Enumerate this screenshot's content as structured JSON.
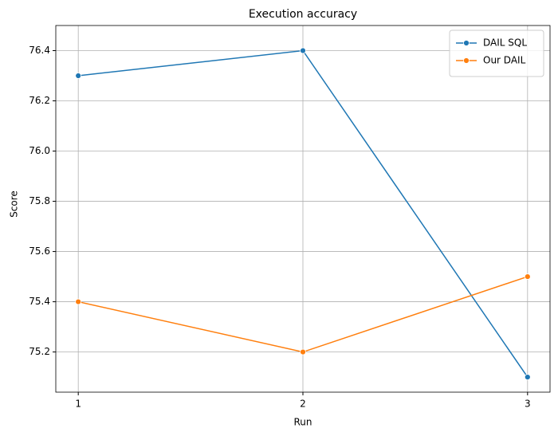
{
  "chart_data": {
    "type": "line",
    "title": "Execution accuracy",
    "x_label": "Run",
    "y_label": "Score",
    "x": [
      1,
      2,
      3
    ],
    "series": [
      {
        "name": "DAIL SQL",
        "color": "#1f77b4",
        "values": [
          76.3,
          76.4,
          75.1
        ]
      },
      {
        "name": "Our DAIL",
        "color": "#ff7f0e",
        "values": [
          75.4,
          75.2,
          75.5
        ]
      }
    ],
    "xlim": [
      0.9,
      3.1
    ],
    "xticks": [
      1,
      2,
      3
    ],
    "ylim": [
      75.04,
      76.5
    ],
    "yticks": [
      75.2,
      75.4,
      75.6,
      75.8,
      {
        "value": 76,
        "label": "76.0"
      },
      76.2,
      76.4
    ],
    "grid": true,
    "legend": "upper-right",
    "markers": true
  }
}
